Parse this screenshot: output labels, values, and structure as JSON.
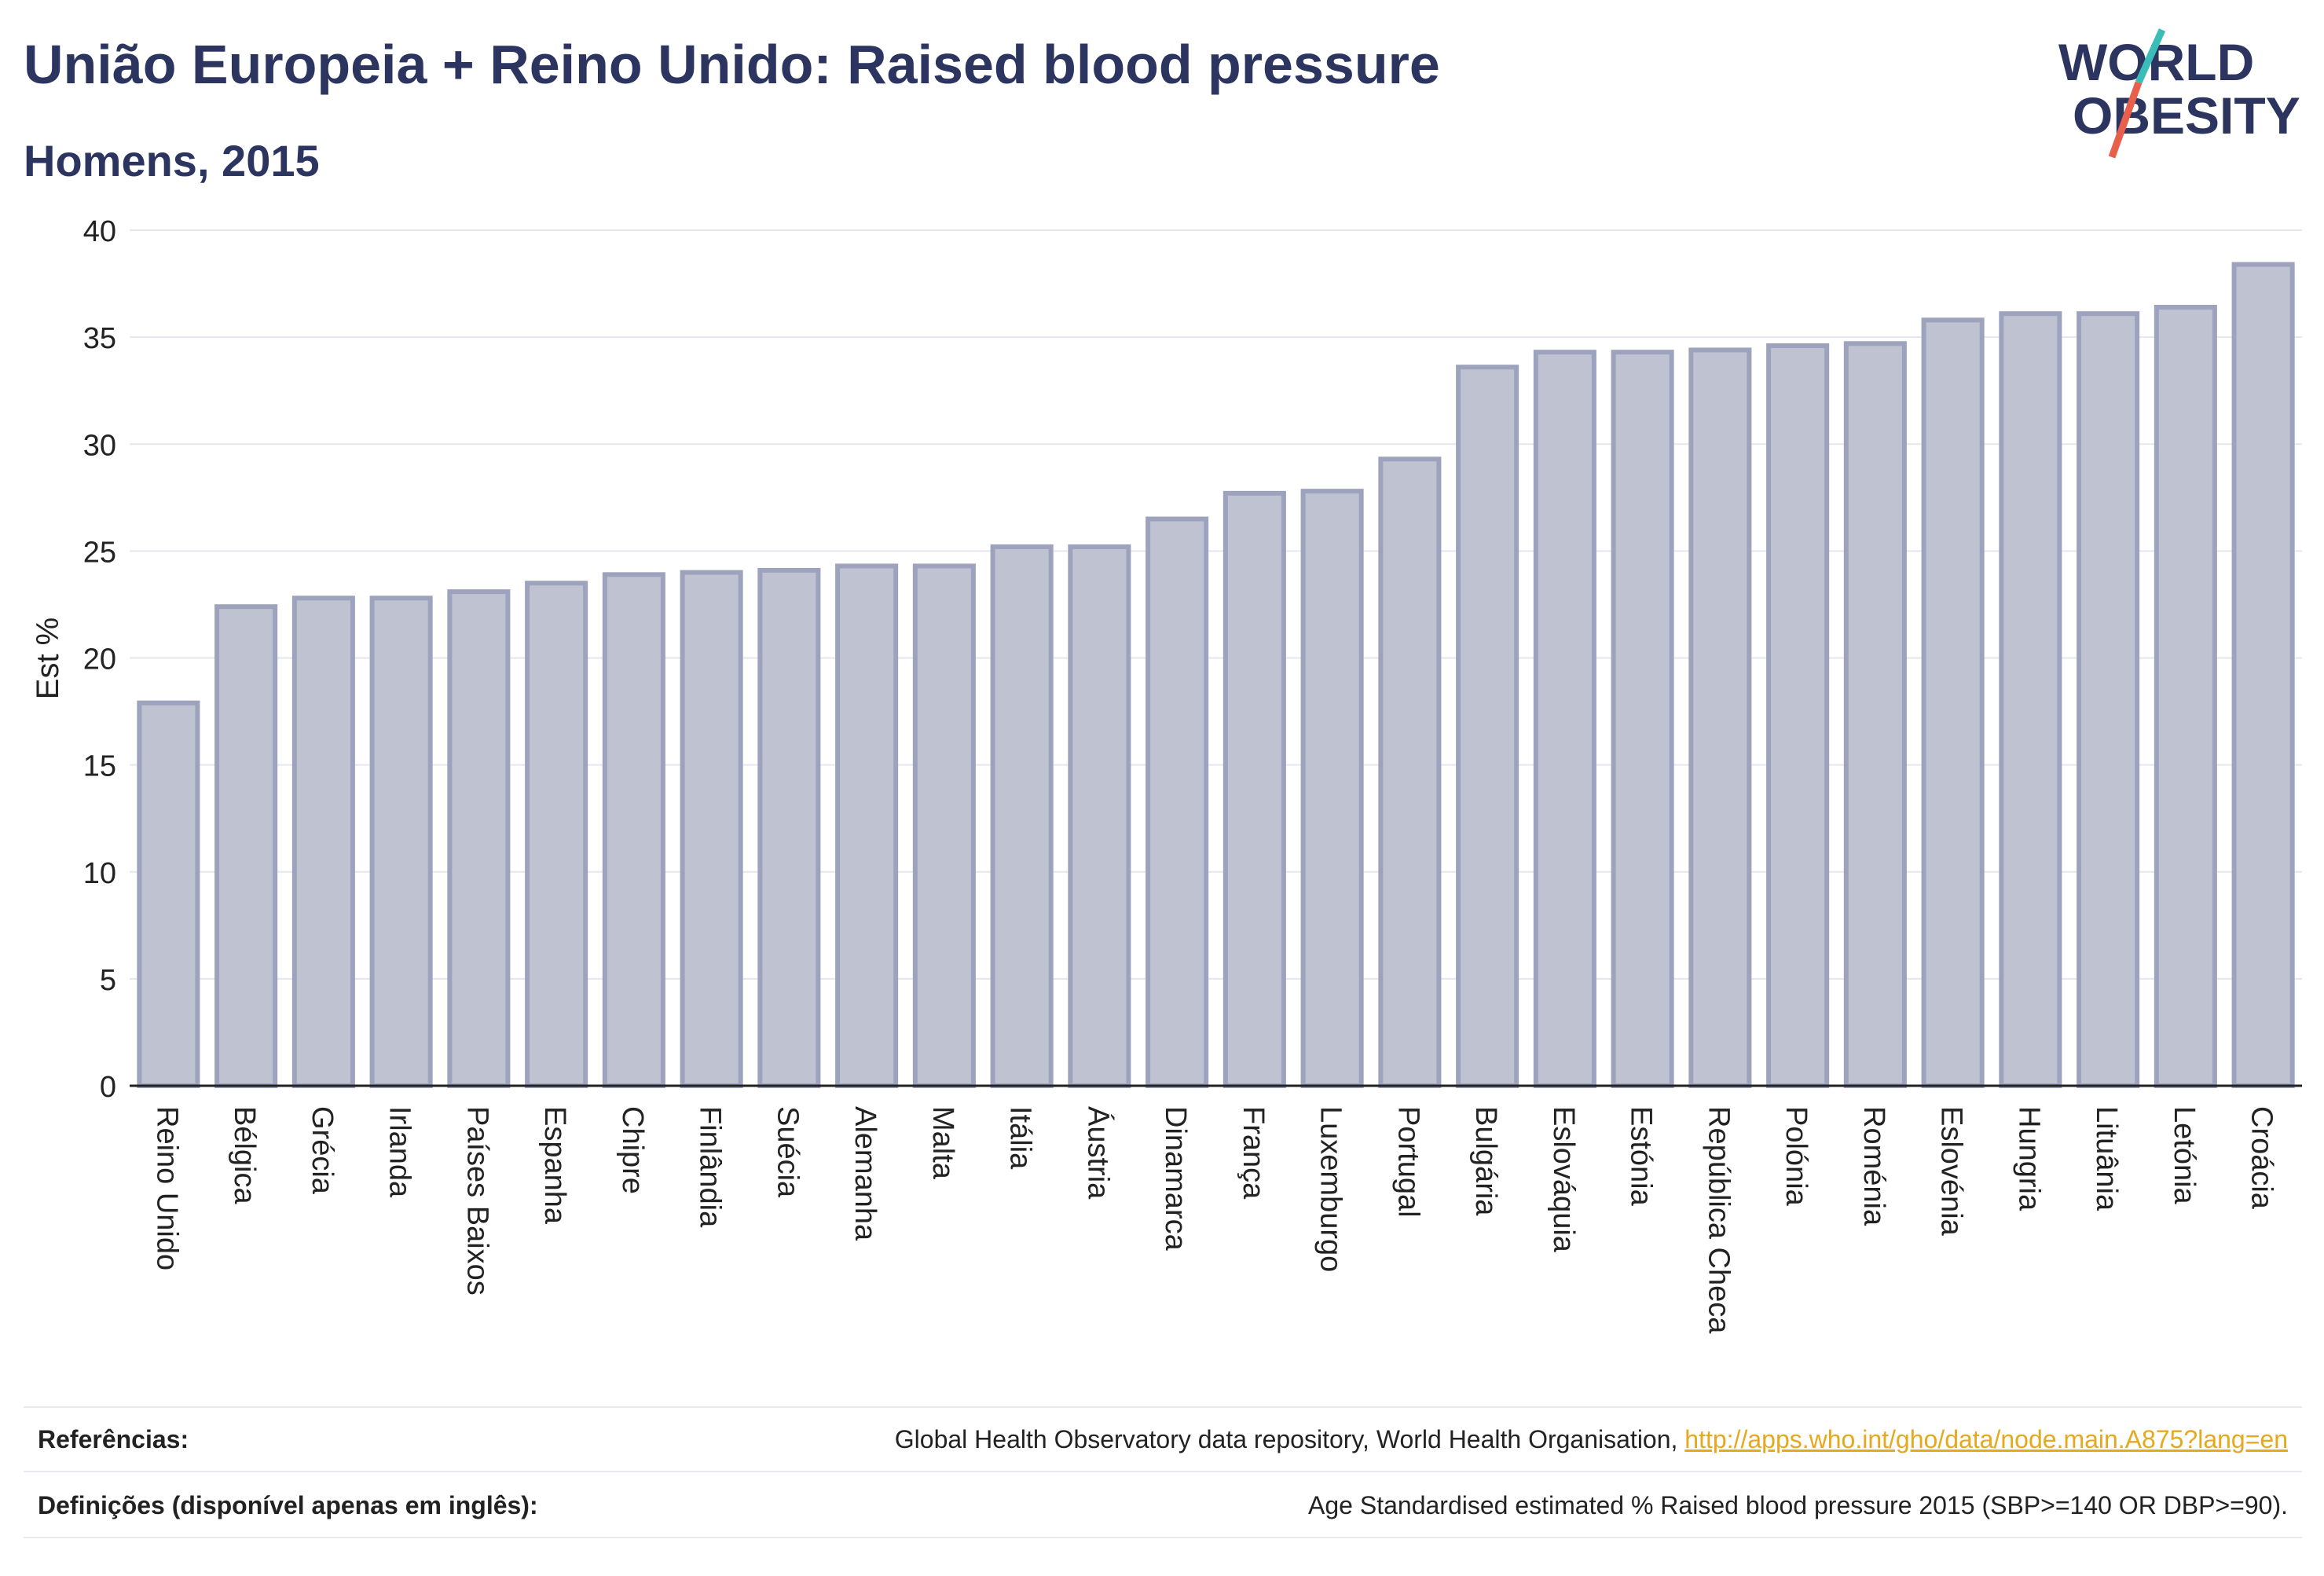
{
  "title": "União Europeia + Reino Unido: Raised blood pressure",
  "subtitle": "Homens, 2015",
  "logo": {
    "line1": "WORLD",
    "line2": "OBESITY",
    "colors": {
      "text": "#2c3560",
      "slash_top": "#3bbdb7",
      "slash_bottom": "#e8604c"
    }
  },
  "chart_data": {
    "type": "bar",
    "ylabel": "Est %",
    "ylim": [
      0,
      40
    ],
    "yticks": [
      0,
      5,
      10,
      15,
      20,
      25,
      30,
      35,
      40
    ],
    "grid": true,
    "bar_color": "#bfc2d1",
    "bar_edge_color": "#9ea3bd",
    "categories": [
      "Reino Unido",
      "Bélgica",
      "Grécia",
      "Irlanda",
      "Países Baixos",
      "Espanha",
      "Chipre",
      "Finlândia",
      "Suécia",
      "Alemanha",
      "Malta",
      "Itália",
      "Áustria",
      "Dinamarca",
      "França",
      "Luxemburgo",
      "Portugal",
      "Bulgária",
      "Eslováquia",
      "Estónia",
      "República Checa",
      "Polónia",
      "Roménia",
      "Eslovénia",
      "Hungria",
      "Lituânia",
      "Letónia",
      "Croácia"
    ],
    "values": [
      17.9,
      22.4,
      22.8,
      22.8,
      23.1,
      23.5,
      23.9,
      24.0,
      24.1,
      24.3,
      24.3,
      25.2,
      25.2,
      26.5,
      27.7,
      27.8,
      29.3,
      33.6,
      34.3,
      34.3,
      34.4,
      34.6,
      34.7,
      35.8,
      36.1,
      36.1,
      36.4,
      38.4
    ]
  },
  "references": {
    "label": "Referências:",
    "text": "Global Health Observatory data repository, World Health Organisation,",
    "link": "http://apps.who.int/gho/data/node.main.A875?lang=en"
  },
  "definitions": {
    "label": "Definições (disponível apenas em inglês):",
    "text": "Age Standardised estimated % Raised blood pressure 2015 (SBP>=140 OR DBP>=90)."
  }
}
